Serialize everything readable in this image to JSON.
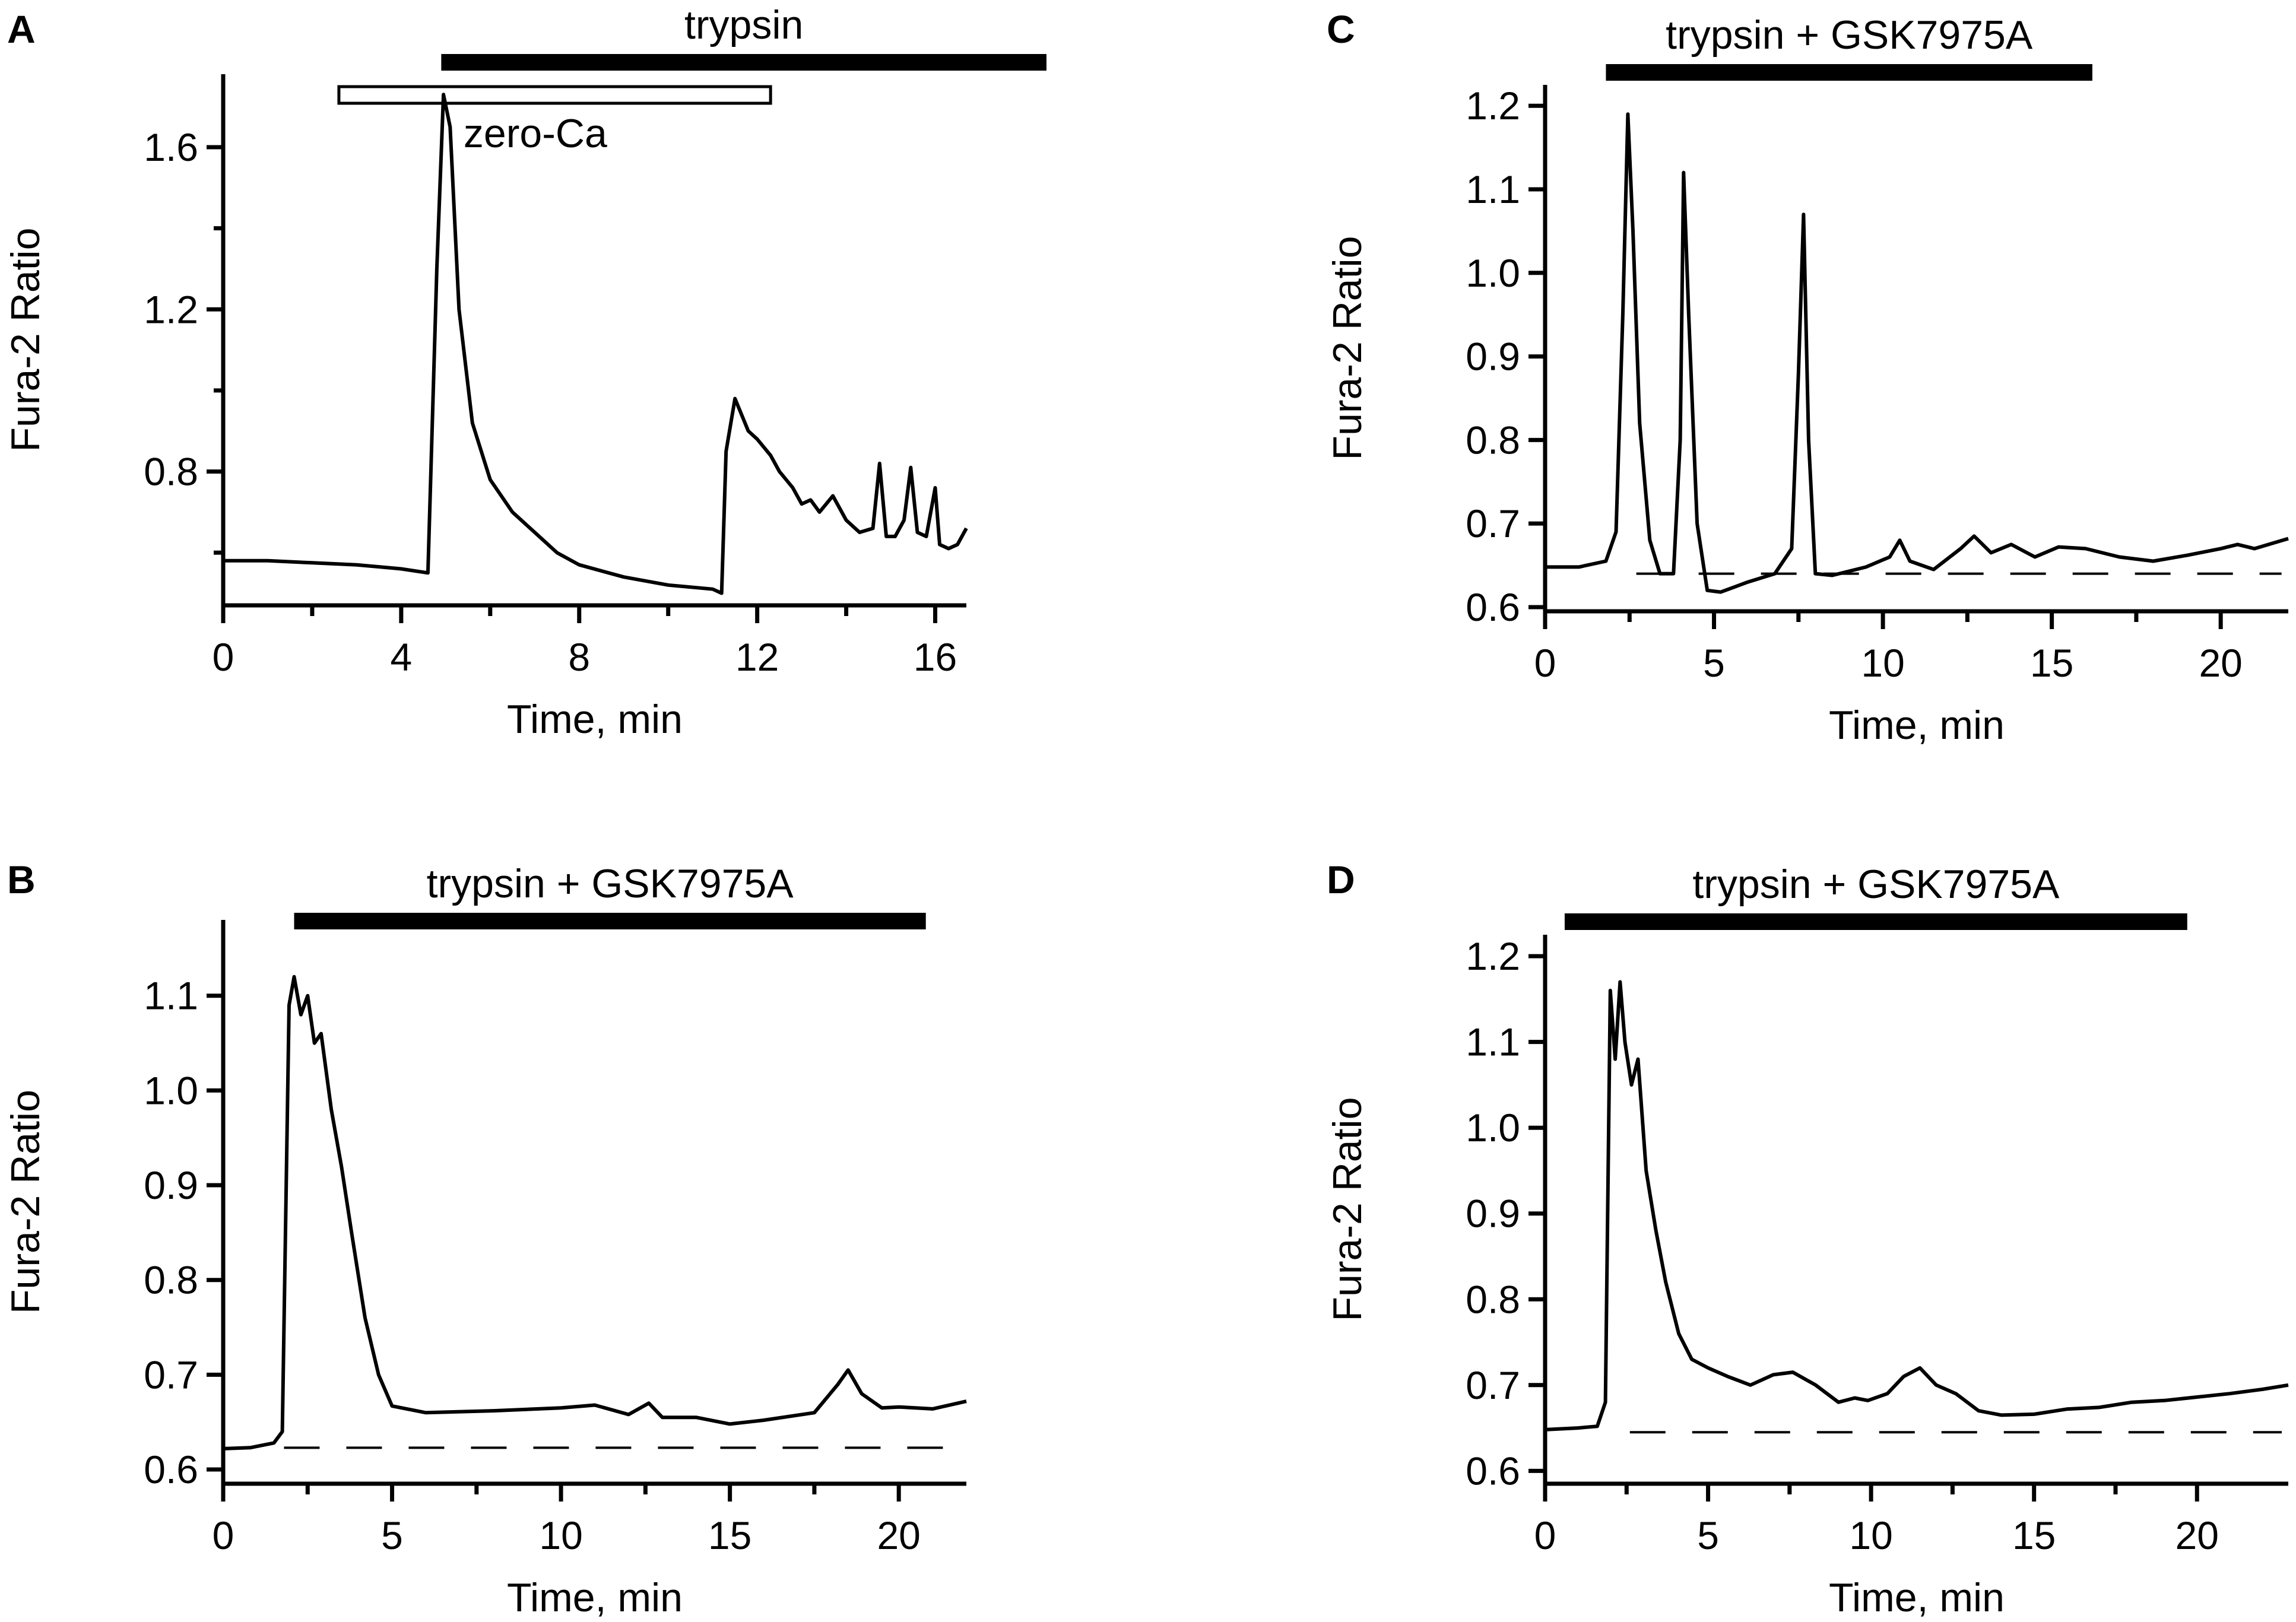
{
  "chart_data": [
    {
      "panel": "A",
      "type": "line",
      "xlabel": "Time, min",
      "ylabel": "Fura-2 Ratio",
      "xlim": [
        0,
        16.7
      ],
      "ylim": [
        0.47,
        1.78
      ],
      "xticks": [
        0,
        4,
        8,
        12,
        16
      ],
      "xminor": [
        2,
        6,
        10,
        14
      ],
      "yticks": [
        0.8,
        1.2,
        1.6
      ],
      "yticklabels": [
        "0.8",
        "1.2",
        "1.6"
      ],
      "yminor": [
        0.6,
        1.0,
        1.4
      ],
      "bars": [
        {
          "label": "trypsin",
          "start": 4.9,
          "end": 18.5,
          "style": "filled"
        },
        {
          "label": "zero-Ca",
          "start": 2.6,
          "end": 12.3,
          "style": "open"
        }
      ],
      "baseline": null,
      "series": [
        {
          "name": "trace",
          "x": [
            0,
            1,
            2,
            3,
            4,
            4.6,
            4.8,
            4.95,
            5.1,
            5.3,
            5.6,
            6,
            6.5,
            7,
            7.5,
            8,
            9,
            10,
            11,
            11.2,
            11.3,
            11.5,
            11.8,
            12,
            12.3,
            12.5,
            12.8,
            13,
            13.2,
            13.4,
            13.7,
            14,
            14.3,
            14.6,
            14.75,
            14.9,
            15.1,
            15.3,
            15.45,
            15.6,
            15.8,
            16,
            16.1,
            16.3,
            16.5,
            16.7
          ],
          "y": [
            0.58,
            0.58,
            0.575,
            0.57,
            0.56,
            0.55,
            1.3,
            1.73,
            1.65,
            1.2,
            0.92,
            0.78,
            0.7,
            0.65,
            0.6,
            0.57,
            0.54,
            0.52,
            0.51,
            0.5,
            0.85,
            0.98,
            0.9,
            0.88,
            0.84,
            0.8,
            0.76,
            0.72,
            0.73,
            0.7,
            0.74,
            0.68,
            0.65,
            0.66,
            0.82,
            0.64,
            0.64,
            0.68,
            0.81,
            0.65,
            0.64,
            0.76,
            0.62,
            0.61,
            0.62,
            0.66
          ]
        }
      ]
    },
    {
      "panel": "B",
      "type": "line",
      "xlabel": "Time, min",
      "ylabel": "Fura-2 Ratio",
      "xlim": [
        0,
        22
      ],
      "ylim": [
        0.585,
        1.18
      ],
      "xticks": [
        0,
        5,
        10,
        15,
        20
      ],
      "xminor": [
        2.5,
        7.5,
        12.5,
        17.5
      ],
      "yticks": [
        0.6,
        0.7,
        0.8,
        0.9,
        1.0,
        1.1
      ],
      "yticklabels": [
        "0.6",
        "0.7",
        "0.8",
        "0.9",
        "1.0",
        "1.1"
      ],
      "yminor": [],
      "bars": [
        {
          "label": "trypsin + GSK7975A",
          "start": 2.1,
          "end": 20.8,
          "style": "filled"
        }
      ],
      "baseline": {
        "y": 0.623,
        "from": 1.8,
        "to": 21.8
      },
      "series": [
        {
          "name": "trace",
          "x": [
            0,
            0.8,
            1.5,
            1.75,
            1.95,
            2.1,
            2.3,
            2.5,
            2.7,
            2.9,
            3.2,
            3.5,
            3.8,
            4.2,
            4.6,
            5,
            6,
            8,
            10,
            11,
            12,
            12.6,
            13,
            14,
            15,
            16,
            17.5,
            18.2,
            18.5,
            18.9,
            19.5,
            20,
            21,
            22
          ],
          "y": [
            0.622,
            0.623,
            0.628,
            0.64,
            1.09,
            1.12,
            1.08,
            1.1,
            1.05,
            1.06,
            0.98,
            0.92,
            0.85,
            0.76,
            0.7,
            0.667,
            0.66,
            0.662,
            0.665,
            0.668,
            0.658,
            0.67,
            0.655,
            0.655,
            0.648,
            0.652,
            0.66,
            0.69,
            0.705,
            0.68,
            0.665,
            0.666,
            0.664,
            0.672
          ]
        }
      ]
    },
    {
      "panel": "C",
      "type": "line",
      "xlabel": "Time, min",
      "ylabel": "Fura-2 Ratio",
      "xlim": [
        0,
        22
      ],
      "ylim": [
        0.595,
        1.225
      ],
      "xticks": [
        0,
        5,
        10,
        15,
        20
      ],
      "xminor": [
        2.5,
        7.5,
        12.5,
        17.5
      ],
      "yticks": [
        0.6,
        0.7,
        0.8,
        0.9,
        1.0,
        1.1,
        1.2
      ],
      "yticklabels": [
        "0.6",
        "0.7",
        "0.8",
        "0.9",
        "1.0",
        "1.1",
        "1.2"
      ],
      "yminor": [],
      "bars": [
        {
          "label": "trypsin + GSK7975A",
          "start": 1.8,
          "end": 16.2,
          "style": "filled"
        }
      ],
      "baseline": {
        "y": 0.64,
        "from": 2.7,
        "to": 21.8
      },
      "series": [
        {
          "name": "trace",
          "x": [
            0,
            1,
            1.8,
            2.1,
            2.3,
            2.45,
            2.6,
            2.8,
            3.1,
            3.4,
            3.8,
            4.0,
            4.1,
            4.25,
            4.5,
            4.8,
            5.2,
            6,
            6.8,
            7.3,
            7.5,
            7.65,
            7.8,
            8.0,
            8.5,
            9.5,
            10.2,
            10.5,
            10.8,
            11.5,
            12.3,
            12.7,
            13.2,
            13.8,
            14.5,
            15.2,
            16,
            17,
            18,
            19,
            20,
            20.5,
            21,
            22
          ],
          "y": [
            0.648,
            0.648,
            0.655,
            0.69,
            0.95,
            1.19,
            1.05,
            0.82,
            0.68,
            0.64,
            0.64,
            0.8,
            1.12,
            0.95,
            0.7,
            0.62,
            0.618,
            0.63,
            0.64,
            0.67,
            0.88,
            1.07,
            0.8,
            0.64,
            0.638,
            0.648,
            0.66,
            0.68,
            0.655,
            0.645,
            0.67,
            0.685,
            0.665,
            0.675,
            0.66,
            0.672,
            0.67,
            0.66,
            0.655,
            0.662,
            0.67,
            0.675,
            0.67,
            0.682
          ]
        }
      ]
    },
    {
      "panel": "D",
      "type": "line",
      "xlabel": "Time, min",
      "ylabel": "Fura-2 Ratio",
      "xlim": [
        0,
        22.8
      ],
      "ylim": [
        0.585,
        1.225
      ],
      "xticks": [
        0,
        5,
        10,
        15,
        20
      ],
      "xminor": [
        2.5,
        7.5,
        12.5,
        17.5
      ],
      "yticks": [
        0.6,
        0.7,
        0.8,
        0.9,
        1.0,
        1.1,
        1.2
      ],
      "yticklabels": [
        "0.6",
        "0.7",
        "0.8",
        "0.9",
        "1.0",
        "1.1",
        "1.2"
      ],
      "yminor": [],
      "bars": [
        {
          "label": "trypsin + GSK7975A",
          "start": 0.6,
          "end": 19.7,
          "style": "filled"
        }
      ],
      "baseline": {
        "y": 0.645,
        "from": 2.6,
        "to": 22.6
      },
      "series": [
        {
          "name": "trace",
          "x": [
            0,
            1,
            1.6,
            1.85,
            2.0,
            2.15,
            2.3,
            2.45,
            2.65,
            2.85,
            3.1,
            3.4,
            3.7,
            4.1,
            4.5,
            5.0,
            5.6,
            6.3,
            7.0,
            7.6,
            8.3,
            9.0,
            9.5,
            9.9,
            10.5,
            11.0,
            11.5,
            12.0,
            12.6,
            13.3,
            14,
            15,
            16,
            17,
            18,
            19,
            20,
            21,
            22,
            22.8
          ],
          "y": [
            0.648,
            0.65,
            0.652,
            0.68,
            1.16,
            1.08,
            1.17,
            1.1,
            1.05,
            1.08,
            0.95,
            0.88,
            0.82,
            0.76,
            0.73,
            0.72,
            0.71,
            0.7,
            0.712,
            0.715,
            0.7,
            0.68,
            0.685,
            0.682,
            0.69,
            0.71,
            0.72,
            0.7,
            0.69,
            0.67,
            0.665,
            0.666,
            0.672,
            0.674,
            0.68,
            0.682,
            0.686,
            0.69,
            0.695,
            0.7
          ]
        }
      ]
    }
  ]
}
